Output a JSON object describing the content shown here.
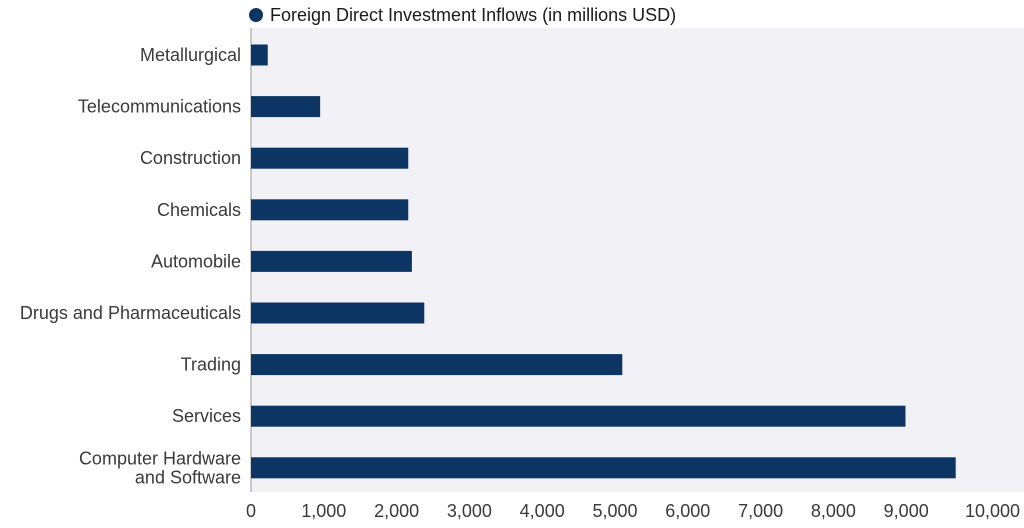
{
  "chart_data": {
    "type": "bar",
    "orientation": "horizontal",
    "title": "",
    "xlabel": "",
    "ylabel": "",
    "categories": [
      [
        "Metallurgical"
      ],
      [
        "Telecommunications"
      ],
      [
        "Construction"
      ],
      [
        "Chemicals"
      ],
      [
        "Automobile"
      ],
      [
        "Drugs and Pharmaceuticals"
      ],
      [
        "Trading"
      ],
      [
        "Services"
      ],
      [
        "Computer Hardware",
        "and Software"
      ]
    ],
    "series": [
      {
        "name": "Foreign Direct Investment Inflows (in millions USD)",
        "color": "#0d3563",
        "values": [
          230,
          950,
          2160,
          2160,
          2210,
          2380,
          5100,
          8990,
          9680
        ]
      }
    ],
    "xlim": [
      0,
      10000
    ],
    "xticks": [
      0,
      1000,
      2000,
      3000,
      4000,
      5000,
      6000,
      7000,
      8000,
      9000,
      10000
    ],
    "xtick_labels": [
      "0",
      "1,000",
      "2,000",
      "3,000",
      "4,000",
      "5,000",
      "6,000",
      "7,000",
      "8,000",
      "9,000",
      "10,000"
    ],
    "grid": false,
    "legend_position": "top-left",
    "plot_background": "#f2f1f6"
  }
}
